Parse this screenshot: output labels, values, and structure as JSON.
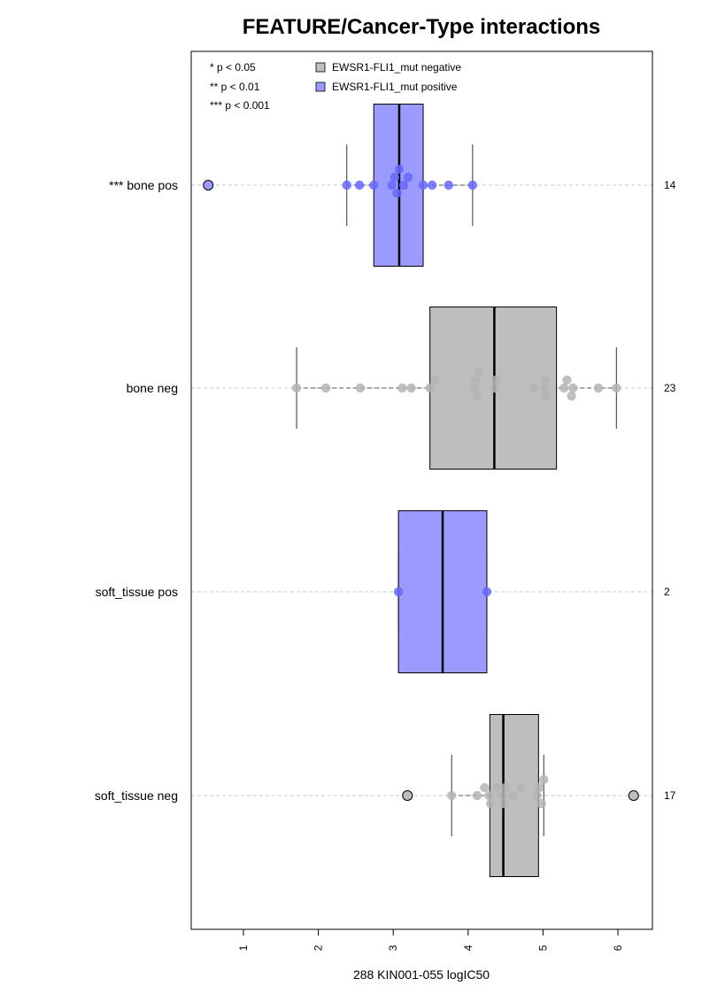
{
  "chart_data": {
    "type": "box",
    "orientation": "horizontal",
    "title": "FEATURE/Cancer-Type interactions",
    "xlabel": "288 KIN001-055 logIC50",
    "xlim": [
      0.3,
      6.45
    ],
    "xticks": [
      "1",
      "2",
      "3",
      "4",
      "5",
      "6"
    ],
    "grid": "horizontal dashed lines at each group",
    "legend": {
      "placement": "top-left",
      "significance": [
        "* p < 0.05",
        "** p < 0.01",
        "*** p < 0.001"
      ],
      "entries": [
        {
          "label": "EWSR1-FLI1_mut negative",
          "color": "#bebebe"
        },
        {
          "label": "EWSR1-FLI1_mut positive",
          "color": "#9a9aff"
        }
      ]
    },
    "colors": {
      "negative_box": "#bebebe",
      "positive_box": "#9a9aff",
      "negative_point": "#b4b4b4",
      "positive_point": "#6666ff"
    },
    "groups": [
      {
        "label": "*** bone pos",
        "n": "14",
        "status": "positive",
        "q1": 2.74,
        "median": 3.08,
        "q3": 3.4,
        "whisker_low": 2.38,
        "whisker_high": 4.06,
        "outliers": [
          0.53
        ],
        "points": [
          2.38,
          2.55,
          2.74,
          2.98,
          3.02,
          3.05,
          3.08,
          3.14,
          3.2,
          3.4,
          3.52,
          3.74,
          4.06
        ]
      },
      {
        "label": "bone neg",
        "n": "23",
        "status": "negative",
        "q1": 3.49,
        "median": 4.35,
        "q3": 5.18,
        "whisker_low": 1.71,
        "whisker_high": 5.98,
        "outliers": [],
        "points": [
          1.71,
          2.1,
          2.56,
          3.12,
          3.24,
          3.49,
          3.56,
          4.08,
          4.1,
          4.12,
          4.14,
          4.35,
          4.37,
          4.88,
          5.02,
          5.03,
          5.04,
          5.28,
          5.32,
          5.38,
          5.4,
          5.74,
          5.98
        ]
      },
      {
        "label": "soft_tissue pos",
        "n": "2",
        "status": "positive",
        "q1": 3.07,
        "median": 3.66,
        "q3": 4.25,
        "whisker_low": 3.07,
        "whisker_high": 4.25,
        "outliers": [],
        "points": [
          3.07,
          4.25
        ]
      },
      {
        "label": "soft_tissue neg",
        "n": "17",
        "status": "negative",
        "q1": 4.29,
        "median": 4.47,
        "q3": 4.94,
        "whisker_low": 3.78,
        "whisker_high": 5.01,
        "outliers": [
          3.19,
          6.21
        ],
        "points": [
          3.78,
          4.12,
          4.22,
          4.28,
          4.3,
          4.38,
          4.45,
          4.48,
          4.5,
          4.6,
          4.7,
          4.92,
          4.95,
          4.98,
          5.01
        ]
      }
    ]
  }
}
